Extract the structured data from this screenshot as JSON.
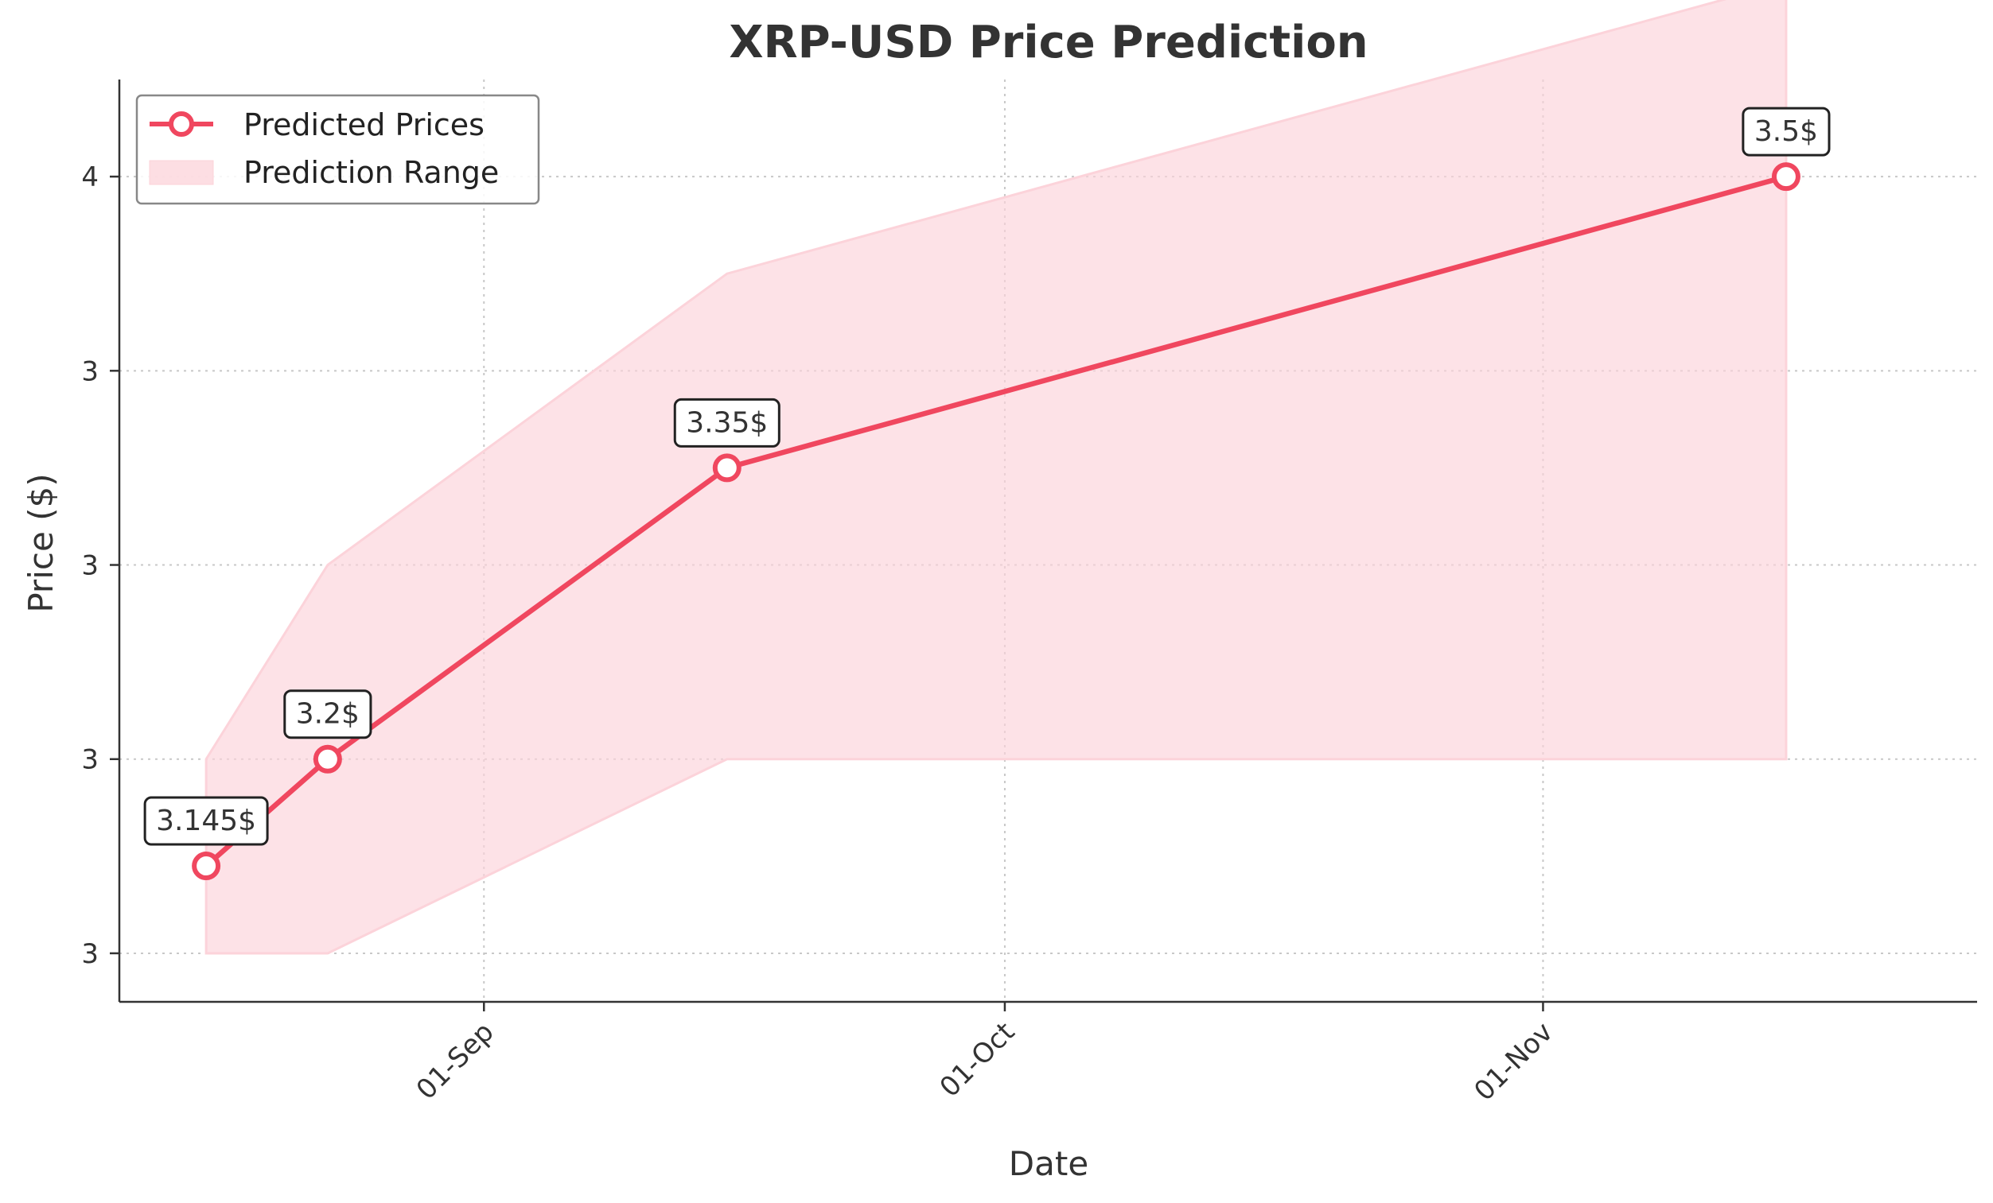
{
  "chart_data": {
    "type": "line",
    "title": "XRP-USD Price Prediction",
    "xlabel": "Date",
    "ylabel": "Price ($)",
    "x": [
      "2025-08-16",
      "2025-08-23",
      "2025-09-15",
      "2025-11-15"
    ],
    "x_ticks": [
      {
        "date": "2025-09-01",
        "label": "01-Sep"
      },
      {
        "date": "2025-10-01",
        "label": "01-Oct"
      },
      {
        "date": "2025-11-01",
        "label": "01-Nov"
      }
    ],
    "xlim": [
      "2025-08-11",
      "2025-11-26"
    ],
    "ylim": [
      3.075,
      3.55
    ],
    "y_ticks": [
      {
        "value": 3.1,
        "label": "3"
      },
      {
        "value": 3.2,
        "label": "3"
      },
      {
        "value": 3.3,
        "label": "3"
      },
      {
        "value": 3.4,
        "label": "3"
      },
      {
        "value": 3.5,
        "label": "4"
      },
      {
        "value": 3.6,
        "label": "4"
      }
    ],
    "series": [
      {
        "name": "Predicted Prices",
        "values": [
          3.145,
          3.2,
          3.35,
          3.5
        ],
        "labels": [
          "3.145$",
          "3.2$",
          "3.35$",
          "3.5$"
        ],
        "color": "#f0475f"
      }
    ],
    "range": {
      "name": "Prediction Range",
      "lower": [
        3.1,
        3.1,
        3.2,
        3.2
      ],
      "upper": [
        3.2,
        3.3,
        3.45,
        3.6
      ],
      "color": "#fcd3da"
    },
    "grid": true,
    "legend_position": "top-left"
  }
}
